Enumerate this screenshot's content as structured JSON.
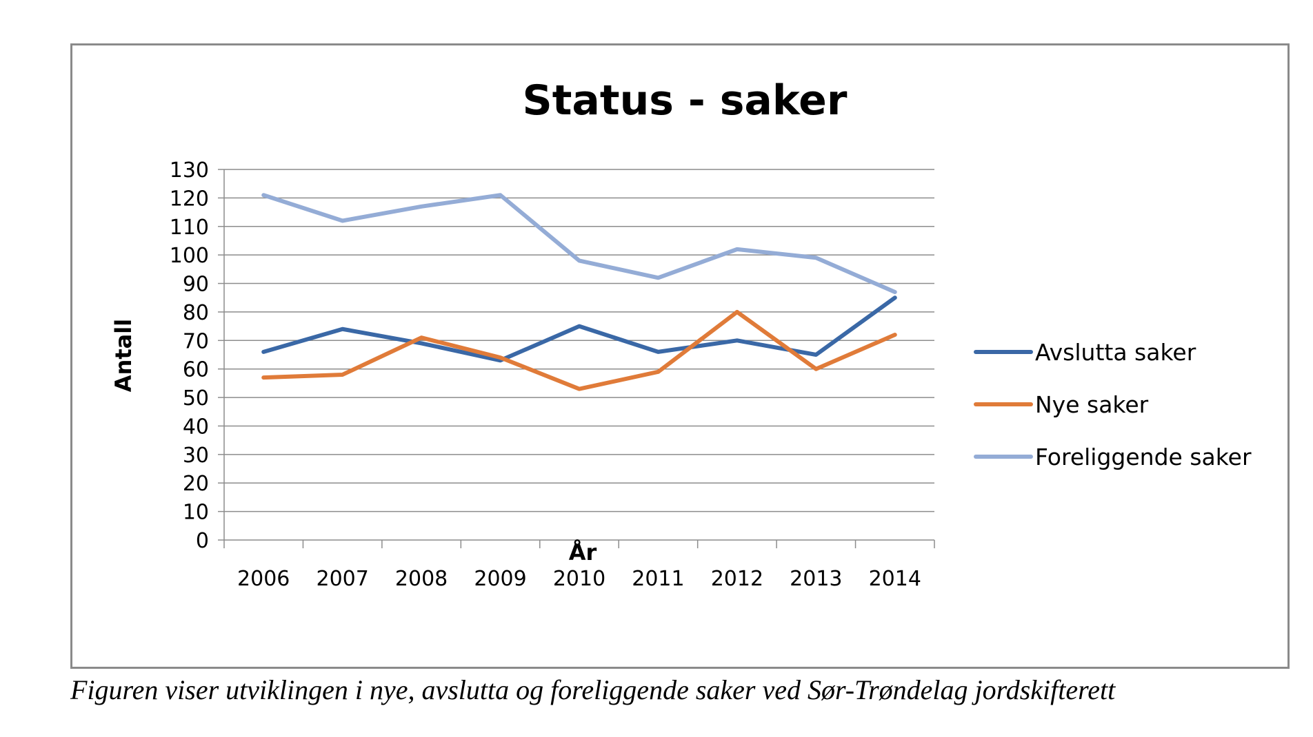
{
  "chart_data": {
    "type": "line",
    "title": "Status - saker",
    "xlabel": "År",
    "ylabel": "Antall",
    "categories": [
      "2006",
      "2007",
      "2008",
      "2009",
      "2010",
      "2011",
      "2012",
      "2013",
      "2014"
    ],
    "ylim": [
      0,
      130
    ],
    "yticks": [
      0,
      10,
      20,
      30,
      40,
      50,
      60,
      70,
      80,
      90,
      100,
      110,
      120,
      130
    ],
    "grid": true,
    "legend_position": "right",
    "series": [
      {
        "name": "Avslutta saker",
        "color": "#3a68a6",
        "values": [
          66,
          74,
          69,
          63,
          75,
          66,
          70,
          65,
          85
        ]
      },
      {
        "name": "Nye saker",
        "color": "#e07b39",
        "values": [
          57,
          58,
          71,
          64,
          53,
          59,
          80,
          60,
          72
        ]
      },
      {
        "name": "Foreliggende saker",
        "color": "#94acd6",
        "values": [
          121,
          112,
          117,
          121,
          98,
          92,
          102,
          99,
          87
        ]
      }
    ]
  },
  "caption": "Figuren viser utviklingen i nye, avslutta og foreliggende saker ved Sør-Trøndelag jordskifterett"
}
